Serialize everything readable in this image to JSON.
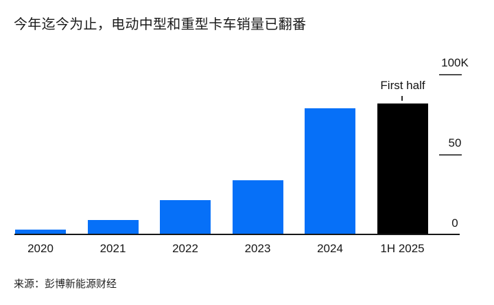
{
  "title": "今年迄今为止，电动中型和重型卡车销量已翻番",
  "source": "来源：彭博新能源财经",
  "annotation": {
    "text": "First half"
  },
  "chart_data": {
    "type": "bar",
    "title": "今年迄今为止，电动中型和重型卡车销量已翻番",
    "categories": [
      "2020",
      "2021",
      "2022",
      "2023",
      "2024",
      "1H 2025"
    ],
    "values": [
      3.5,
      9.5,
      22,
      34,
      79,
      82
    ],
    "values_unit": "thousand vehicles",
    "xlabel": "",
    "ylabel": "",
    "ylim": [
      0,
      100
    ],
    "yticks": [
      {
        "label": "100K",
        "value": 100
      },
      {
        "label": "50",
        "value": 50
      },
      {
        "label": "0",
        "value": 0
      }
    ],
    "grid": false,
    "legend": false,
    "axis_side": "right",
    "colors": {
      "bar_default": "#0670F8",
      "bar_highlight": "#000000",
      "axis_line": "#161616",
      "tick_line": "#4d4d4d"
    },
    "highlight_index": 5,
    "annotation": {
      "text": "First half",
      "target_category": "1H 2025"
    },
    "source": "来源：彭博新能源财经"
  }
}
